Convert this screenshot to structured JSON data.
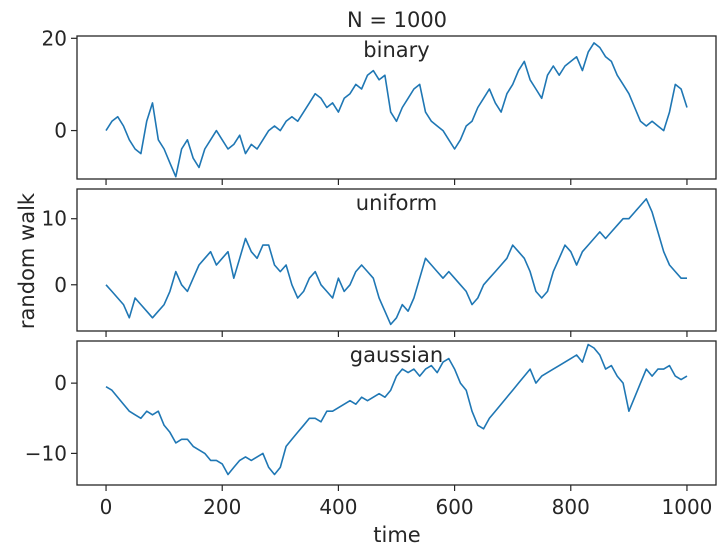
{
  "figure": {
    "title": "N = 1000",
    "xlabel": "time",
    "ylabel": "random walk"
  },
  "chart_data": {
    "type": "line",
    "title": "N = 1000",
    "xlabel": "time",
    "ylabel": "random walk",
    "xlim": [
      -50,
      1050
    ],
    "x_ticks": [
      0,
      200,
      400,
      600,
      800,
      1000
    ],
    "grid": false,
    "line_color": "#1f77b4",
    "panels": [
      {
        "name": "binary",
        "ylim": [
          -10.5,
          20.5
        ],
        "y_ticks": [
          0,
          20
        ],
        "points": [
          [
            0,
            0
          ],
          [
            10,
            2
          ],
          [
            20,
            3
          ],
          [
            30,
            1
          ],
          [
            40,
            -2
          ],
          [
            50,
            -4
          ],
          [
            60,
            -5
          ],
          [
            70,
            2
          ],
          [
            80,
            6
          ],
          [
            90,
            -2
          ],
          [
            100,
            -4
          ],
          [
            110,
            -7
          ],
          [
            120,
            -10
          ],
          [
            130,
            -4
          ],
          [
            140,
            -2
          ],
          [
            150,
            -6
          ],
          [
            160,
            -8
          ],
          [
            170,
            -4
          ],
          [
            180,
            -2
          ],
          [
            190,
            0
          ],
          [
            200,
            -2
          ],
          [
            210,
            -4
          ],
          [
            220,
            -3
          ],
          [
            230,
            -1
          ],
          [
            240,
            -5
          ],
          [
            250,
            -3
          ],
          [
            260,
            -4
          ],
          [
            270,
            -2
          ],
          [
            280,
            0
          ],
          [
            290,
            1
          ],
          [
            300,
            0
          ],
          [
            310,
            2
          ],
          [
            320,
            3
          ],
          [
            330,
            2
          ],
          [
            340,
            4
          ],
          [
            350,
            6
          ],
          [
            360,
            8
          ],
          [
            370,
            7
          ],
          [
            380,
            5
          ],
          [
            390,
            6
          ],
          [
            400,
            4
          ],
          [
            410,
            7
          ],
          [
            420,
            8
          ],
          [
            430,
            10
          ],
          [
            440,
            9
          ],
          [
            450,
            12
          ],
          [
            460,
            13
          ],
          [
            470,
            11
          ],
          [
            480,
            12
          ],
          [
            490,
            4
          ],
          [
            500,
            2
          ],
          [
            510,
            5
          ],
          [
            520,
            7
          ],
          [
            530,
            9
          ],
          [
            540,
            10
          ],
          [
            550,
            4
          ],
          [
            560,
            2
          ],
          [
            570,
            1
          ],
          [
            580,
            0
          ],
          [
            590,
            -2
          ],
          [
            600,
            -4
          ],
          [
            610,
            -2
          ],
          [
            620,
            1
          ],
          [
            630,
            2
          ],
          [
            640,
            5
          ],
          [
            650,
            7
          ],
          [
            660,
            9
          ],
          [
            670,
            6
          ],
          [
            680,
            4
          ],
          [
            690,
            8
          ],
          [
            700,
            10
          ],
          [
            710,
            13
          ],
          [
            720,
            15
          ],
          [
            730,
            11
          ],
          [
            740,
            9
          ],
          [
            750,
            7
          ],
          [
            760,
            12
          ],
          [
            770,
            14
          ],
          [
            780,
            12
          ],
          [
            790,
            14
          ],
          [
            800,
            15
          ],
          [
            810,
            16
          ],
          [
            820,
            13
          ],
          [
            830,
            17
          ],
          [
            840,
            19
          ],
          [
            850,
            18
          ],
          [
            860,
            16
          ],
          [
            870,
            15
          ],
          [
            880,
            12
          ],
          [
            890,
            10
          ],
          [
            900,
            8
          ],
          [
            910,
            5
          ],
          [
            920,
            2
          ],
          [
            930,
            1
          ],
          [
            940,
            2
          ],
          [
            950,
            1
          ],
          [
            960,
            0
          ],
          [
            970,
            4
          ],
          [
            980,
            10
          ],
          [
            990,
            9
          ],
          [
            1000,
            5
          ]
        ]
      },
      {
        "name": "uniform",
        "ylim": [
          -7,
          14.5
        ],
        "y_ticks": [
          0,
          10
        ],
        "points": [
          [
            0,
            0
          ],
          [
            10,
            -1
          ],
          [
            20,
            -2
          ],
          [
            30,
            -3
          ],
          [
            40,
            -5
          ],
          [
            50,
            -2
          ],
          [
            60,
            -3
          ],
          [
            70,
            -4
          ],
          [
            80,
            -5
          ],
          [
            90,
            -4
          ],
          [
            100,
            -3
          ],
          [
            110,
            -1
          ],
          [
            120,
            2
          ],
          [
            130,
            0
          ],
          [
            140,
            -1
          ],
          [
            150,
            1
          ],
          [
            160,
            3
          ],
          [
            170,
            4
          ],
          [
            180,
            5
          ],
          [
            190,
            3
          ],
          [
            200,
            4
          ],
          [
            210,
            5
          ],
          [
            220,
            1
          ],
          [
            230,
            4
          ],
          [
            240,
            7
          ],
          [
            250,
            5
          ],
          [
            260,
            4
          ],
          [
            270,
            6
          ],
          [
            280,
            6
          ],
          [
            290,
            3
          ],
          [
            300,
            2
          ],
          [
            310,
            3
          ],
          [
            320,
            0
          ],
          [
            330,
            -2
          ],
          [
            340,
            -1
          ],
          [
            350,
            1
          ],
          [
            360,
            2
          ],
          [
            370,
            0
          ],
          [
            380,
            -1
          ],
          [
            390,
            -2
          ],
          [
            400,
            1
          ],
          [
            410,
            -1
          ],
          [
            420,
            0
          ],
          [
            430,
            2
          ],
          [
            440,
            3
          ],
          [
            450,
            2
          ],
          [
            460,
            1
          ],
          [
            470,
            -2
          ],
          [
            480,
            -4
          ],
          [
            490,
            -6
          ],
          [
            500,
            -5
          ],
          [
            510,
            -3
          ],
          [
            520,
            -4
          ],
          [
            530,
            -2
          ],
          [
            540,
            1
          ],
          [
            550,
            4
          ],
          [
            560,
            3
          ],
          [
            570,
            2
          ],
          [
            580,
            1
          ],
          [
            590,
            2
          ],
          [
            600,
            1
          ],
          [
            610,
            0
          ],
          [
            620,
            -1
          ],
          [
            630,
            -3
          ],
          [
            640,
            -2
          ],
          [
            650,
            0
          ],
          [
            660,
            1
          ],
          [
            670,
            2
          ],
          [
            680,
            3
          ],
          [
            690,
            4
          ],
          [
            700,
            6
          ],
          [
            710,
            5
          ],
          [
            720,
            4
          ],
          [
            730,
            2
          ],
          [
            740,
            -1
          ],
          [
            750,
            -2
          ],
          [
            760,
            -1
          ],
          [
            770,
            2
          ],
          [
            780,
            4
          ],
          [
            790,
            6
          ],
          [
            800,
            5
          ],
          [
            810,
            3
          ],
          [
            820,
            5
          ],
          [
            830,
            6
          ],
          [
            840,
            7
          ],
          [
            850,
            8
          ],
          [
            860,
            7
          ],
          [
            870,
            8
          ],
          [
            880,
            9
          ],
          [
            890,
            10
          ],
          [
            900,
            10
          ],
          [
            910,
            11
          ],
          [
            920,
            12
          ],
          [
            930,
            13
          ],
          [
            940,
            11
          ],
          [
            950,
            8
          ],
          [
            960,
            5
          ],
          [
            970,
            3
          ],
          [
            980,
            2
          ],
          [
            990,
            1
          ],
          [
            1000,
            1
          ]
        ]
      },
      {
        "name": "gaussian",
        "ylim": [
          -14.5,
          6
        ],
        "y_ticks": [
          -10,
          0
        ],
        "points": [
          [
            0,
            -0.5
          ],
          [
            10,
            -1
          ],
          [
            20,
            -2
          ],
          [
            30,
            -3
          ],
          [
            40,
            -4
          ],
          [
            50,
            -4.5
          ],
          [
            60,
            -5
          ],
          [
            70,
            -4
          ],
          [
            80,
            -4.5
          ],
          [
            90,
            -4
          ],
          [
            100,
            -6
          ],
          [
            110,
            -7
          ],
          [
            120,
            -8.5
          ],
          [
            130,
            -8
          ],
          [
            140,
            -8
          ],
          [
            150,
            -9
          ],
          [
            160,
            -9.5
          ],
          [
            170,
            -10
          ],
          [
            180,
            -11
          ],
          [
            190,
            -11
          ],
          [
            200,
            -11.5
          ],
          [
            210,
            -13
          ],
          [
            220,
            -12
          ],
          [
            230,
            -11
          ],
          [
            240,
            -10.5
          ],
          [
            250,
            -11
          ],
          [
            260,
            -10.5
          ],
          [
            270,
            -10
          ],
          [
            280,
            -12
          ],
          [
            290,
            -13
          ],
          [
            300,
            -12
          ],
          [
            310,
            -9
          ],
          [
            320,
            -8
          ],
          [
            330,
            -7
          ],
          [
            340,
            -6
          ],
          [
            350,
            -5
          ],
          [
            360,
            -5
          ],
          [
            370,
            -5.5
          ],
          [
            380,
            -4
          ],
          [
            390,
            -4
          ],
          [
            400,
            -3.5
          ],
          [
            410,
            -3
          ],
          [
            420,
            -2.5
          ],
          [
            430,
            -3
          ],
          [
            440,
            -2
          ],
          [
            450,
            -2.5
          ],
          [
            460,
            -2
          ],
          [
            470,
            -1.5
          ],
          [
            480,
            -2
          ],
          [
            490,
            -1
          ],
          [
            500,
            1
          ],
          [
            510,
            2
          ],
          [
            520,
            1.5
          ],
          [
            530,
            2
          ],
          [
            540,
            1
          ],
          [
            550,
            2
          ],
          [
            560,
            2.5
          ],
          [
            570,
            1.5
          ],
          [
            580,
            3
          ],
          [
            590,
            3.5
          ],
          [
            600,
            2
          ],
          [
            610,
            0
          ],
          [
            620,
            -1
          ],
          [
            630,
            -4
          ],
          [
            640,
            -6
          ],
          [
            650,
            -6.5
          ],
          [
            660,
            -5
          ],
          [
            670,
            -4
          ],
          [
            680,
            -3
          ],
          [
            690,
            -2
          ],
          [
            700,
            -1
          ],
          [
            710,
            0
          ],
          [
            720,
            1
          ],
          [
            730,
            2
          ],
          [
            740,
            0
          ],
          [
            750,
            1
          ],
          [
            760,
            1.5
          ],
          [
            770,
            2
          ],
          [
            780,
            2.5
          ],
          [
            790,
            3
          ],
          [
            800,
            3.5
          ],
          [
            810,
            4
          ],
          [
            820,
            3
          ],
          [
            830,
            5.5
          ],
          [
            840,
            5
          ],
          [
            850,
            4
          ],
          [
            860,
            2
          ],
          [
            870,
            2.5
          ],
          [
            880,
            1
          ],
          [
            890,
            0
          ],
          [
            900,
            -4
          ],
          [
            910,
            -2
          ],
          [
            920,
            0
          ],
          [
            930,
            2
          ],
          [
            940,
            1
          ],
          [
            950,
            2
          ],
          [
            960,
            2
          ],
          [
            970,
            2.5
          ],
          [
            980,
            1
          ],
          [
            990,
            0.5
          ],
          [
            1000,
            1
          ]
        ]
      }
    ]
  }
}
